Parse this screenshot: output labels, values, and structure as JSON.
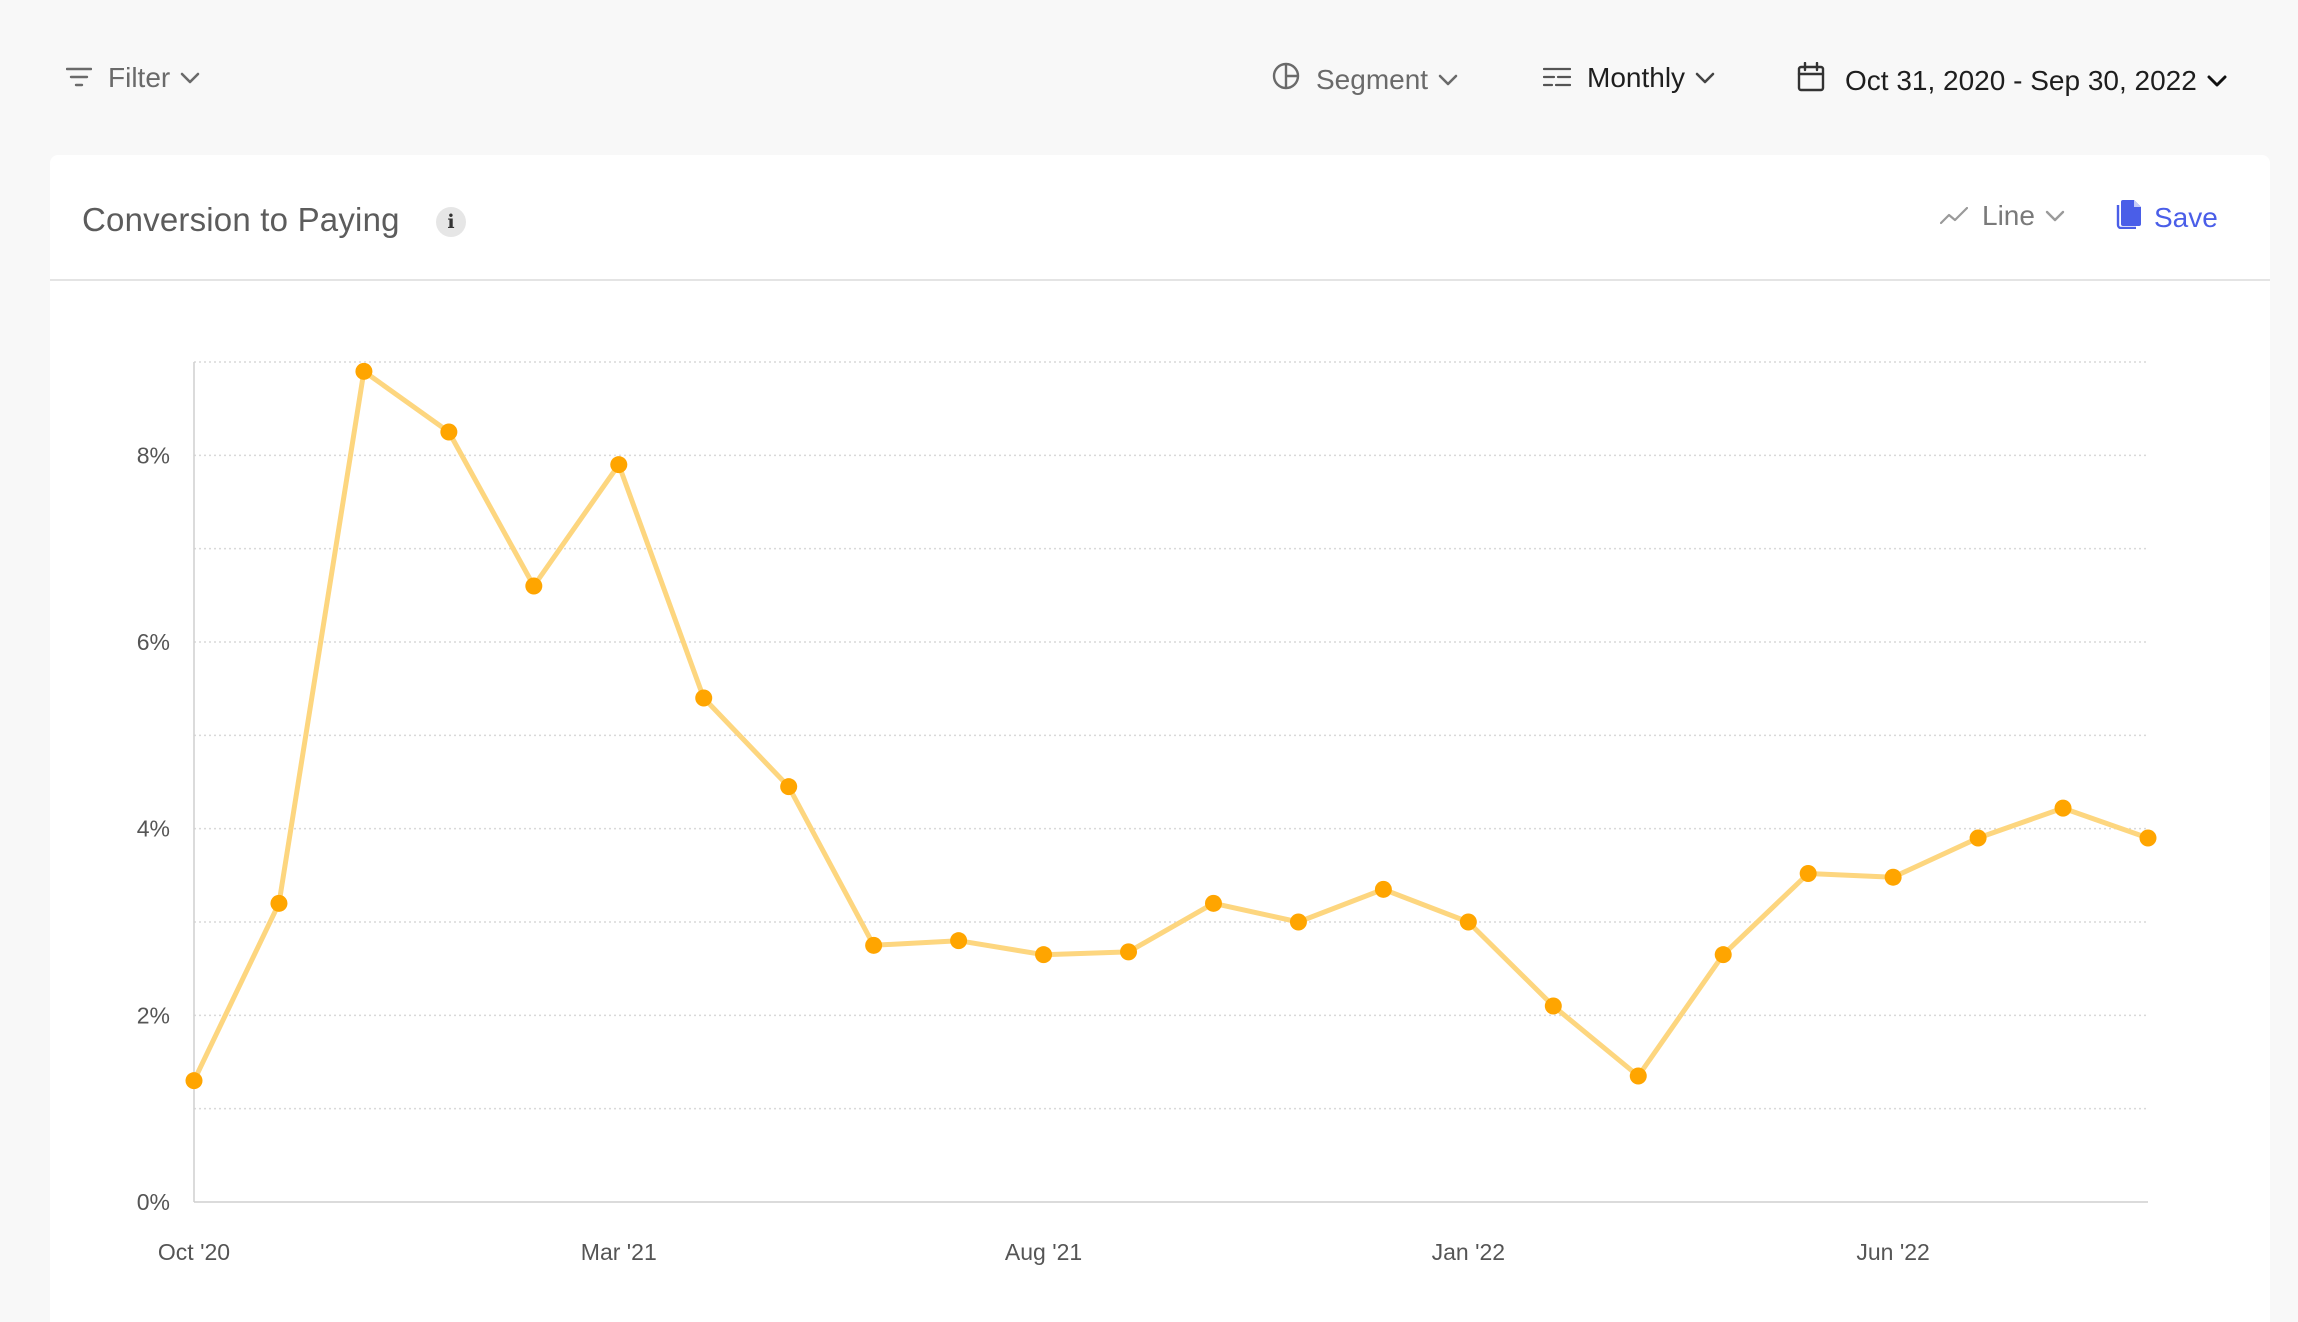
{
  "toolbar": {
    "filter_label": "Filter",
    "segment_label": "Segment",
    "interval_label": "Monthly",
    "date_range_label": "Oct 31, 2020 - Sep 30, 2022"
  },
  "card": {
    "title": "Conversion to Paying",
    "info_glyph": "i",
    "chart_type_label": "Line",
    "save_label": "Save"
  },
  "colors": {
    "line": "#fdd67f",
    "point": "#ffa500",
    "accent": "#4a5ee8",
    "grid": "#d9d9d9"
  },
  "icons": {
    "filter": "filter-icon",
    "segment": "segment-icon",
    "interval": "interval-icon",
    "date": "calendar-icon",
    "chart_type": "line-chart-icon",
    "save": "document-icon",
    "info": "info-icon"
  },
  "chart_data": {
    "type": "line",
    "title": "Conversion to Paying",
    "xlabel": "",
    "ylabel": "",
    "ylim": [
      0,
      9
    ],
    "y_ticks": [
      0,
      2,
      4,
      6,
      8
    ],
    "y_tick_labels": [
      "0%",
      "2%",
      "4%",
      "6%",
      "8%"
    ],
    "x_tick_labels": [
      "Oct '20",
      "Mar '21",
      "Aug '21",
      "Jan '22",
      "Jun '22"
    ],
    "x_tick_indices": [
      0,
      5,
      10,
      15,
      20
    ],
    "grid": "horizontal-dotted",
    "x": [
      "Oct 2020",
      "Nov 2020",
      "Dec 2020",
      "Jan 2021",
      "Feb 2021",
      "Mar 2021",
      "Apr 2021",
      "May 2021",
      "Jun 2021",
      "Jul 2021",
      "Aug 2021",
      "Sep 2021",
      "Oct 2021",
      "Nov 2021",
      "Dec 2021",
      "Jan 2022",
      "Feb 2022",
      "Mar 2022",
      "Apr 2022",
      "May 2022",
      "Jun 2022",
      "Jul 2022",
      "Aug 2022",
      "Sep 2022"
    ],
    "series": [
      {
        "values": [
          1.3,
          3.2,
          8.9,
          8.25,
          6.6,
          7.9,
          5.4,
          4.45,
          2.75,
          2.8,
          2.65,
          2.68,
          3.2,
          3.0,
          3.35,
          3.0,
          2.1,
          1.35,
          2.65,
          3.52,
          3.48,
          3.9,
          4.22,
          3.9
        ]
      }
    ]
  }
}
